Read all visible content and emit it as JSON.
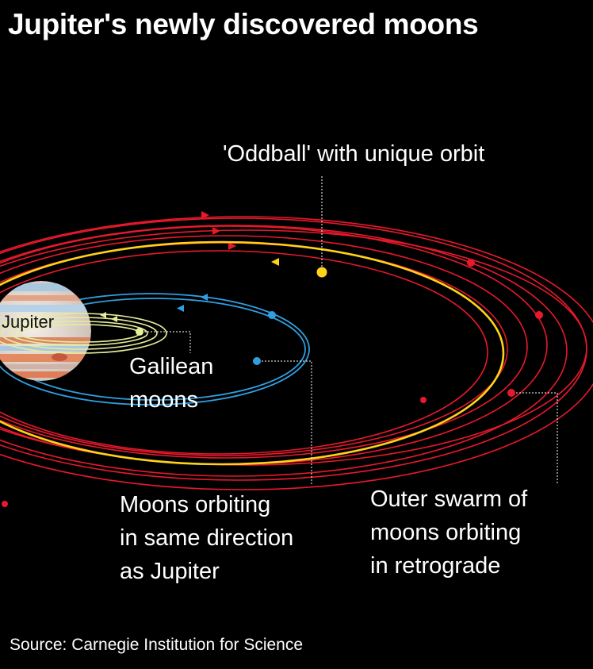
{
  "title": "Jupiter's newly discovered moons",
  "planet_label": "Jupiter",
  "labels": {
    "oddball": "'Oddball' with unique orbit",
    "galilean": [
      "Galilean",
      "moons"
    ],
    "prograde": [
      "Moons orbiting",
      "in same direction",
      "as Jupiter"
    ],
    "retrograde": [
      "Outer swarm of",
      "moons orbiting",
      "in retrograde"
    ]
  },
  "source": "Source: Carnegie Institution for Science",
  "colors": {
    "background": "#000000",
    "retrograde_orbit": "#e8192c",
    "oddball_orbit": "#ffd21a",
    "prograde_orbit": "#2f9fe0",
    "galilean_orbit": "#e6ee9a",
    "text": "#ffffff"
  }
}
